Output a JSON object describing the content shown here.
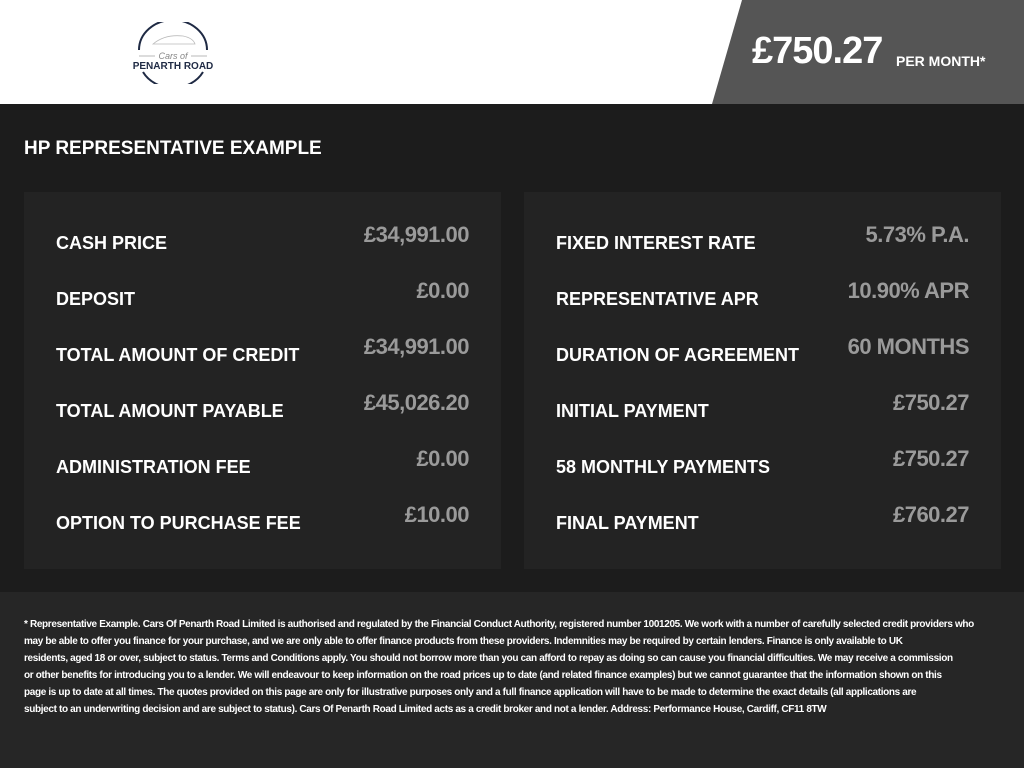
{
  "header": {
    "logo_text_top": "Cars of",
    "logo_text_bottom": "PENARTH ROAD",
    "monthly_price": "£750.27",
    "per_month_label": "PER MONTH*",
    "panel_color": "#555555"
  },
  "title": "HP REPRESENTATIVE EXAMPLE",
  "left_rows": [
    {
      "label": "CASH PRICE",
      "value": "£34,991.00"
    },
    {
      "label": "DEPOSIT",
      "value": "£0.00"
    },
    {
      "label": "TOTAL AMOUNT OF CREDIT",
      "value": "£34,991.00"
    },
    {
      "label": "TOTAL AMOUNT PAYABLE",
      "value": "£45,026.20"
    },
    {
      "label": "ADMINISTRATION FEE",
      "value": "£0.00"
    },
    {
      "label": "OPTION TO PURCHASE FEE",
      "value": "£10.00"
    }
  ],
  "right_rows": [
    {
      "label": "FIXED INTEREST RATE",
      "value": "5.73% P.A."
    },
    {
      "label": "REPRESENTATIVE APR",
      "value": "10.90% APR"
    },
    {
      "label": "DURATION OF AGREEMENT",
      "value": "60 MONTHS"
    },
    {
      "label": "INITIAL PAYMENT",
      "value": "£750.27"
    },
    {
      "label": "58 MONTHLY PAYMENTS",
      "value": "£750.27"
    },
    {
      "label": "FINAL PAYMENT",
      "value": "£760.27"
    }
  ],
  "disclaimer_lines": [
    "* Representative Example. Cars Of Penarth Road Limited is authorised and regulated by the Financial Conduct Authority, registered number 1001205. We work with a number of carefully selected credit providers who",
    "may be able to offer you finance for your purchase, and we are only able to offer finance products from these providers. Indemnities may be required by certain lenders. Finance is only available to UK",
    "residents, aged 18 or over, subject to status. Terms and Conditions apply. You should not borrow more than you can afford to repay as doing so can cause you financial difficulties. We may receive a commission",
    "or other benefits for introducing you to a lender. We will endeavour to keep information on the road prices up to date (and related finance examples) but we cannot guarantee that the information shown on this",
    "page is up to date at all times. The quotes provided on this page are only for illustrative purposes only and a full finance application will have to be made to determine the exact details (all applications are",
    "subject to an underwriting decision and are subject to status). Cars Of Penarth Road Limited acts as a credit broker and not a lender. Address: Performance House, Cardiff, CF11 8TW"
  ]
}
